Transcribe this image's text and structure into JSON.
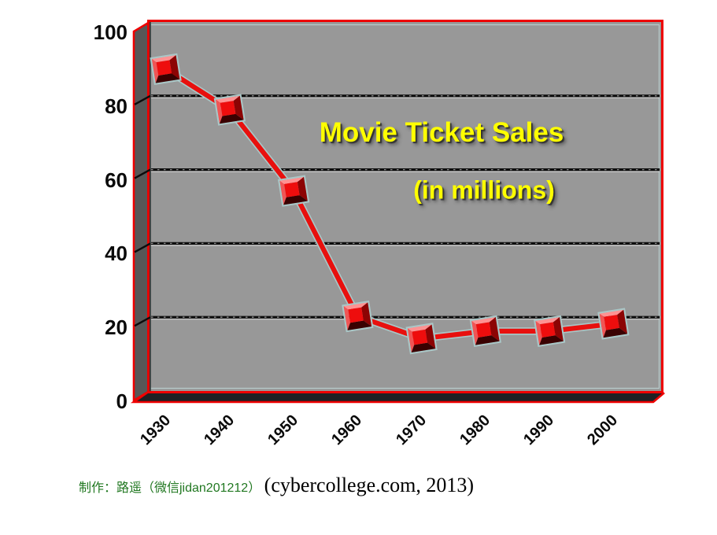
{
  "chart_data": {
    "type": "line",
    "title": "Movie Ticket Sales",
    "subtitle": "(in millions)",
    "categories": [
      "1930",
      "1940",
      "1950",
      "1960",
      "1970",
      "1980",
      "1990",
      "2000"
    ],
    "values": [
      90,
      79,
      57,
      23,
      17,
      19,
      19,
      21
    ],
    "series_name": "Movie ticket sales",
    "xlabel": "",
    "ylabel": "",
    "ylim": [
      0,
      100
    ],
    "ytick_interval": 20,
    "ytick_labels": [
      "100",
      "80",
      "60",
      "40",
      "20",
      "0"
    ],
    "ytick_values": [
      100,
      80,
      60,
      40,
      20,
      0
    ],
    "grid": true,
    "legend": false,
    "style": "3d-perspective",
    "marker": "3d-beveled-square"
  },
  "colors": {
    "plot_background": "#989898",
    "side_wall": "#575757",
    "floor": "#1e2124",
    "frame_red": "#ee0000",
    "line_red": "#e8100e",
    "halo": "#a9c7c7",
    "gridline": "#0c0c0c",
    "title_yellow": "#ffff00",
    "axis_text": "#0a0a0a",
    "credit_green": "#217821"
  },
  "caption": {
    "credit": "制作：路遥（微信jidan201212）",
    "source": "(cybercollege.com, 2013)"
  }
}
